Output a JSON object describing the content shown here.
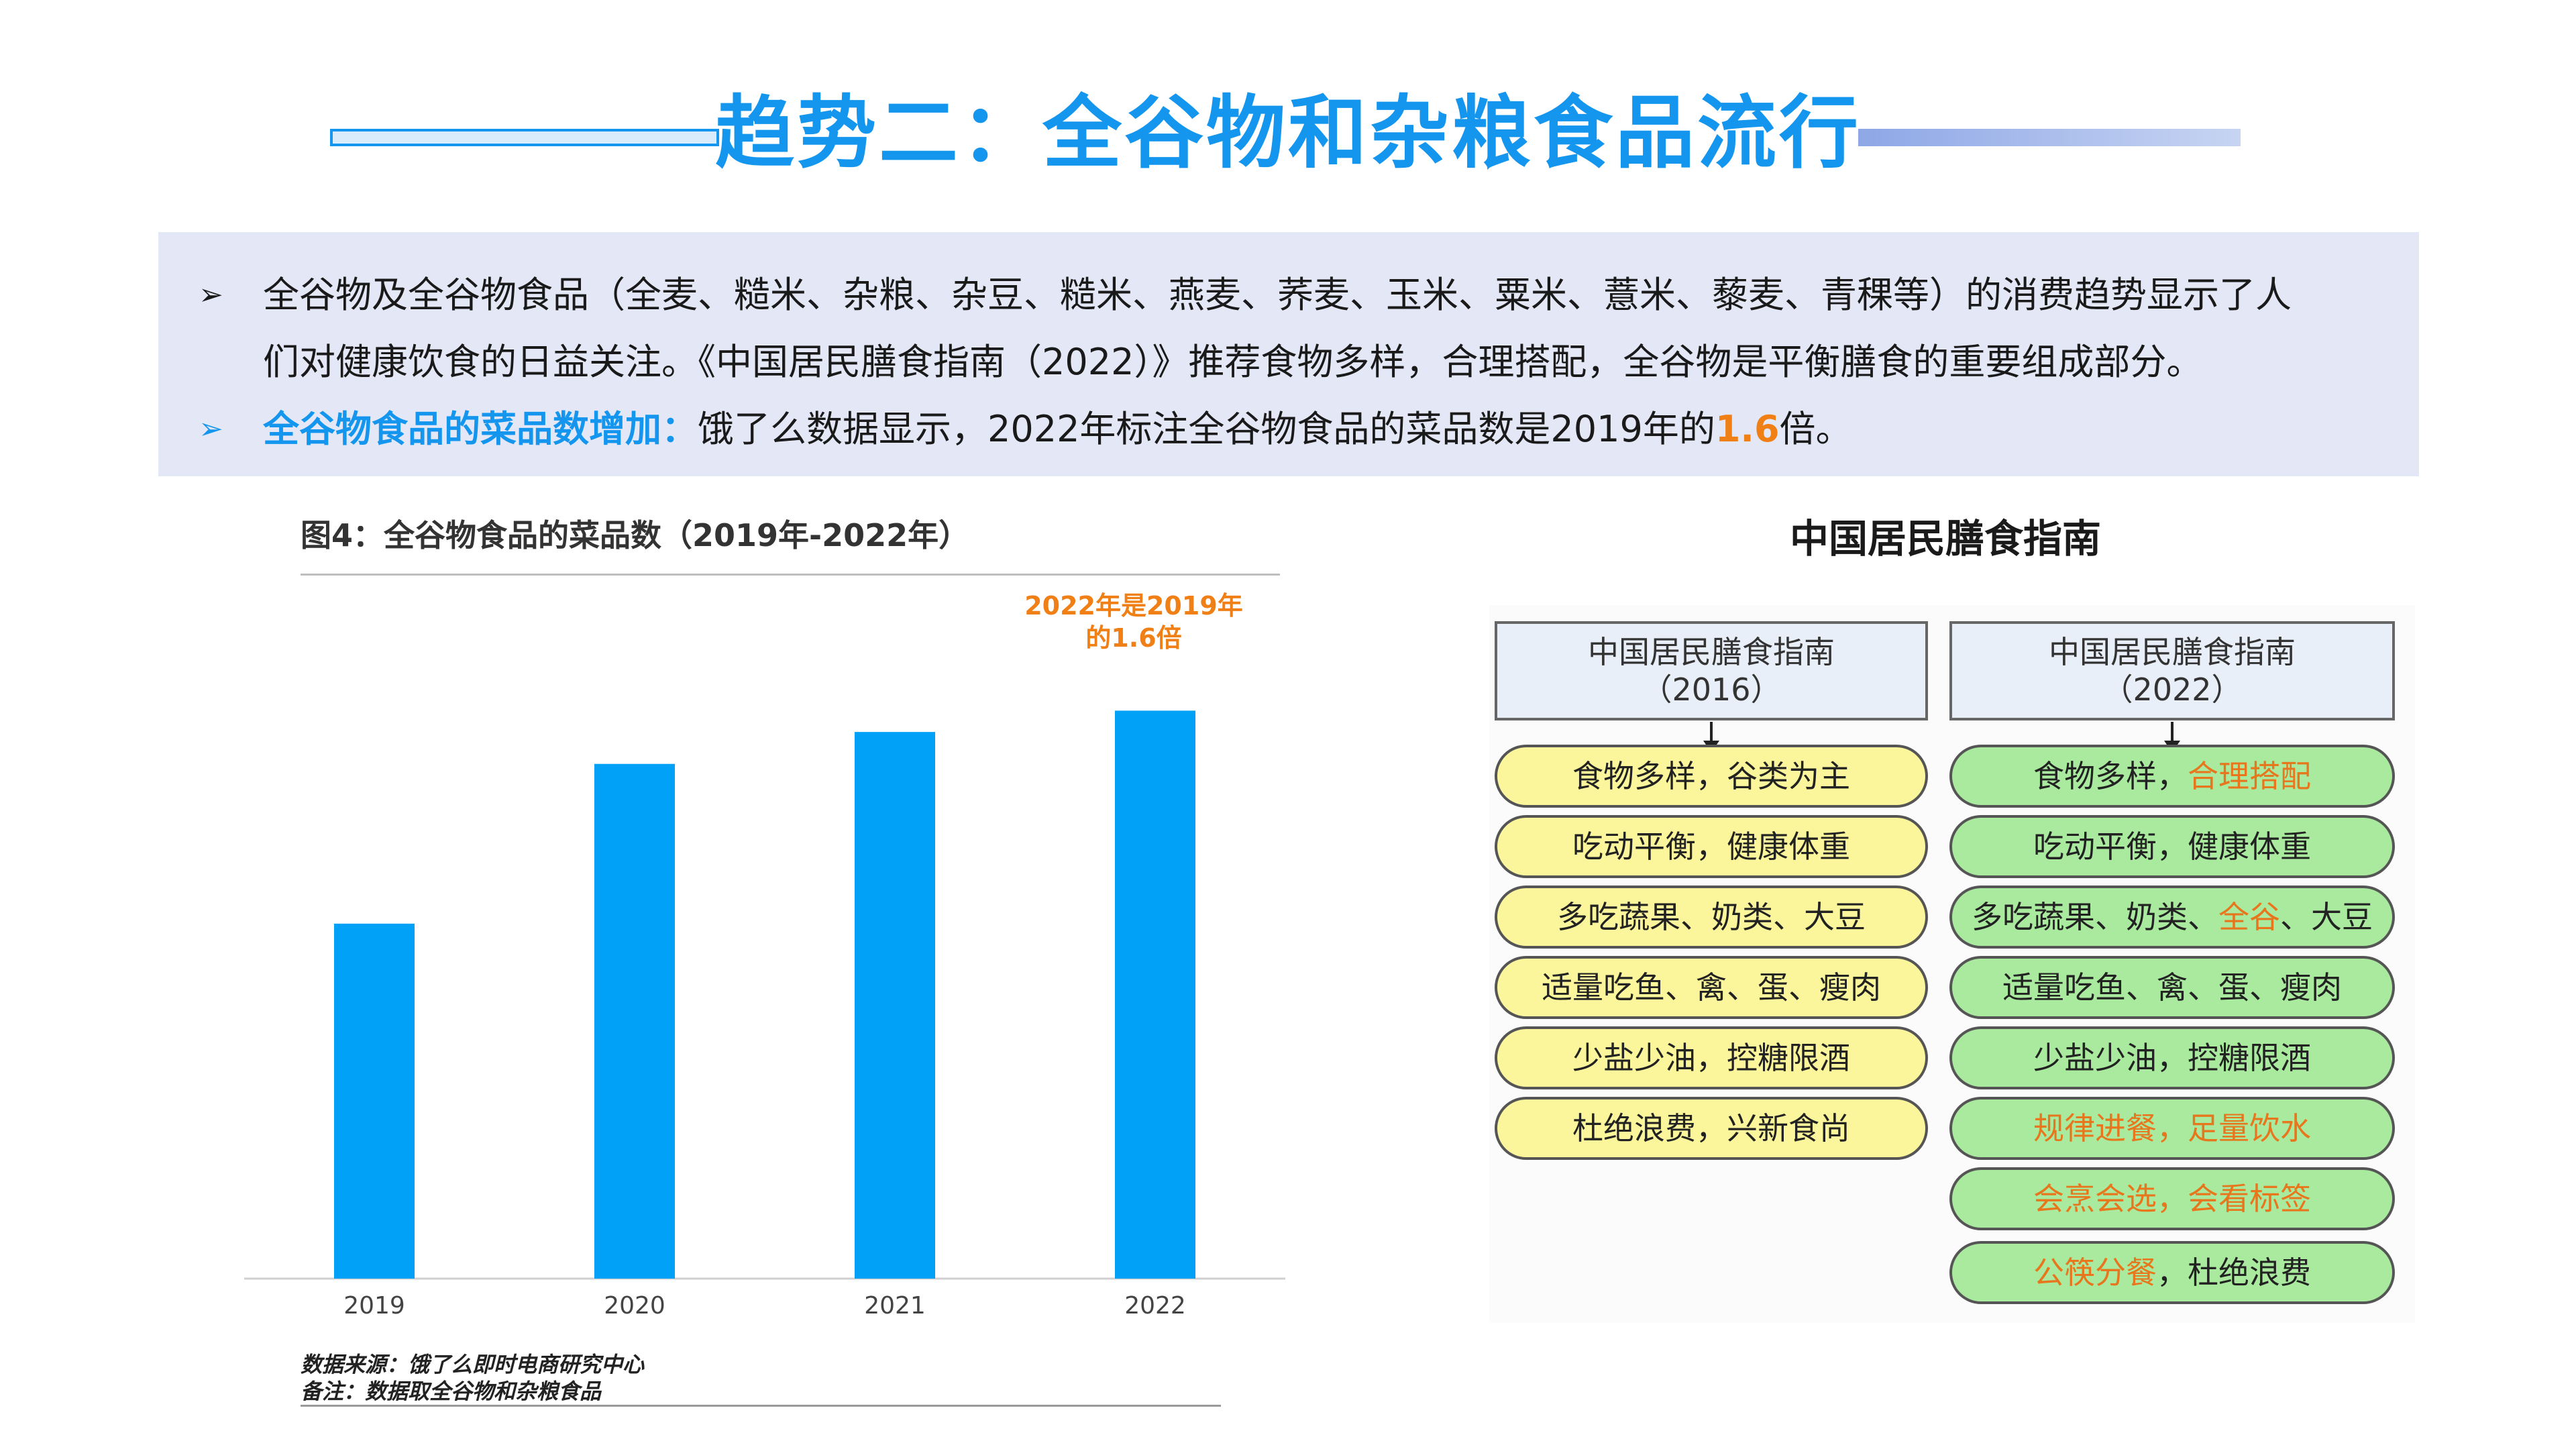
{
  "title": "趋势二：全谷物和杂粮食品流行",
  "intro": {
    "line1": "全谷物及全谷物食品（全麦、糙米、杂粮、杂豆、糙米、燕麦、荞麦、玉米、粟米、薏米、藜麦、青稞等）的消费趋势显示了人",
    "line2": "们对健康饮食的日益关注。《中国居民膳食指南（2022）》推荐食物多样，合理搭配，全谷物是平衡膳食的重要组成部分。",
    "line3_highlight": "全谷物食品的菜品数增加：",
    "line3_text": "饿了么数据显示，2022年标注全谷物食品的菜品数是2019年的",
    "line3_number": "1.6",
    "line3_end": "倍。",
    "bullet": "➢"
  },
  "chart_title": "图4：全谷物食品的菜品数（2019年-2022年）",
  "chart_annotation": [
    "2022年是2019年",
    "的1.6倍"
  ],
  "chart_note": [
    "数据来源：饿了么即时电商研究中心",
    "备注：数据取全谷物和杂粮食品"
  ],
  "chart_data": {
    "type": "bar",
    "categories": [
      "2019",
      "2020",
      "2021",
      "2022"
    ],
    "values": [
      1.0,
      1.45,
      1.54,
      1.6
    ],
    "ylim": [
      0,
      1.75
    ],
    "grid": false,
    "color": "#02a1f8"
  },
  "diagram": {
    "title": "中国居民膳食指南",
    "col2016": {
      "heading": "中国居民膳食指南",
      "year": "（2016）",
      "items": [
        "食物多样，谷类为主",
        "吃动平衡，健康体重",
        "多吃蔬果、奶类、大豆",
        "适量吃鱼、禽、蛋、瘦肉",
        "少盐少油，控糖限酒",
        "杜绝浪费，兴新食尚"
      ]
    },
    "col2022": {
      "heading": "中国居民膳食指南",
      "year": "（2022）",
      "item1_a": "食物多样，",
      "item1_b": "合理搭配",
      "item2": "吃动平衡，健康体重",
      "item3_a": "多吃蔬果、奶类、",
      "item3_b": "全谷",
      "item3_c": "、大豆",
      "item4": "适量吃鱼、禽、蛋、瘦肉",
      "item5": "少盐少油，控糖限酒",
      "item6": "规律进餐，足量饮水",
      "item7": "会烹会选，会看标签",
      "item8_a": "公筷分餐",
      "item8_b": "，杜绝浪费"
    },
    "highlight_color": "#e8761c"
  }
}
